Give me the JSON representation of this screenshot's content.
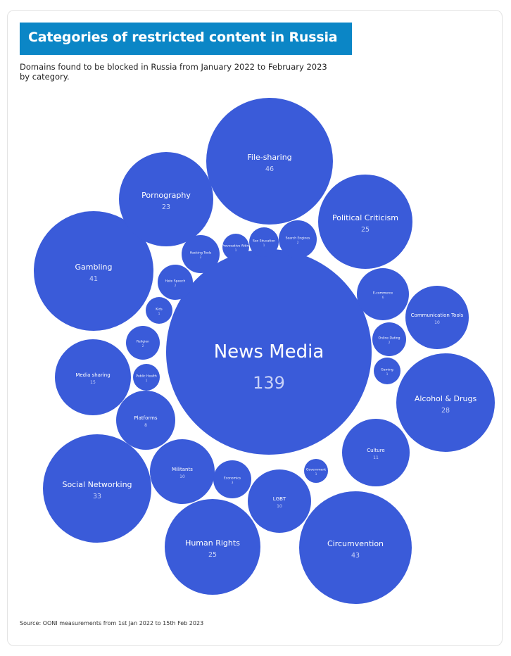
{
  "title": "Categories of restricted content in Russia",
  "subtitle": "Domains found to be blocked in Russia from January 2022 to February 2023 by category.",
  "source": "Source: OONI measurements from 1st Jan 2022 to 15th Feb 2023",
  "colors": {
    "bubble": "#3a5bd9",
    "title_bar": "#0b86c6"
  },
  "chart_data": {
    "type": "bubble",
    "title": "Categories of restricted content in Russia",
    "subtitle": "Domains found to be blocked in Russia from January 2022 to February 2023 by category.",
    "series": [
      {
        "name": "News Media",
        "value": 139
      },
      {
        "name": "File-sharing",
        "value": 46
      },
      {
        "name": "Circumvention",
        "value": 43
      },
      {
        "name": "Gambling",
        "value": 41
      },
      {
        "name": "Social Networking",
        "value": 33
      },
      {
        "name": "Alcohol & Drugs",
        "value": 28
      },
      {
        "name": "Political Criticism",
        "value": 25
      },
      {
        "name": "Human Rights",
        "value": 25
      },
      {
        "name": "Pornography",
        "value": 23
      },
      {
        "name": "Media sharing",
        "value": 15
      },
      {
        "name": "Culture",
        "value": 11
      },
      {
        "name": "Militants",
        "value": 10
      },
      {
        "name": "LGBT",
        "value": 10
      },
      {
        "name": "Communication Tools",
        "value": 10
      },
      {
        "name": "Platforms",
        "value": 8
      },
      {
        "name": "E-commerce",
        "value": 6
      },
      {
        "name": "Economics",
        "value": 3
      },
      {
        "name": "Hacking Tools",
        "value": 2
      },
      {
        "name": "Hate Speech",
        "value": 2
      },
      {
        "name": "Religion",
        "value": 2
      },
      {
        "name": "Search Engines",
        "value": 2
      },
      {
        "name": "Online Dating",
        "value": 2
      },
      {
        "name": "Provocative Attire",
        "value": 1
      },
      {
        "name": "Sex Education",
        "value": 1
      },
      {
        "name": "Kids",
        "value": 1
      },
      {
        "name": "Public Health",
        "value": 1
      },
      {
        "name": "Gaming",
        "value": 1
      },
      {
        "name": "Government",
        "value": 1
      }
    ]
  }
}
